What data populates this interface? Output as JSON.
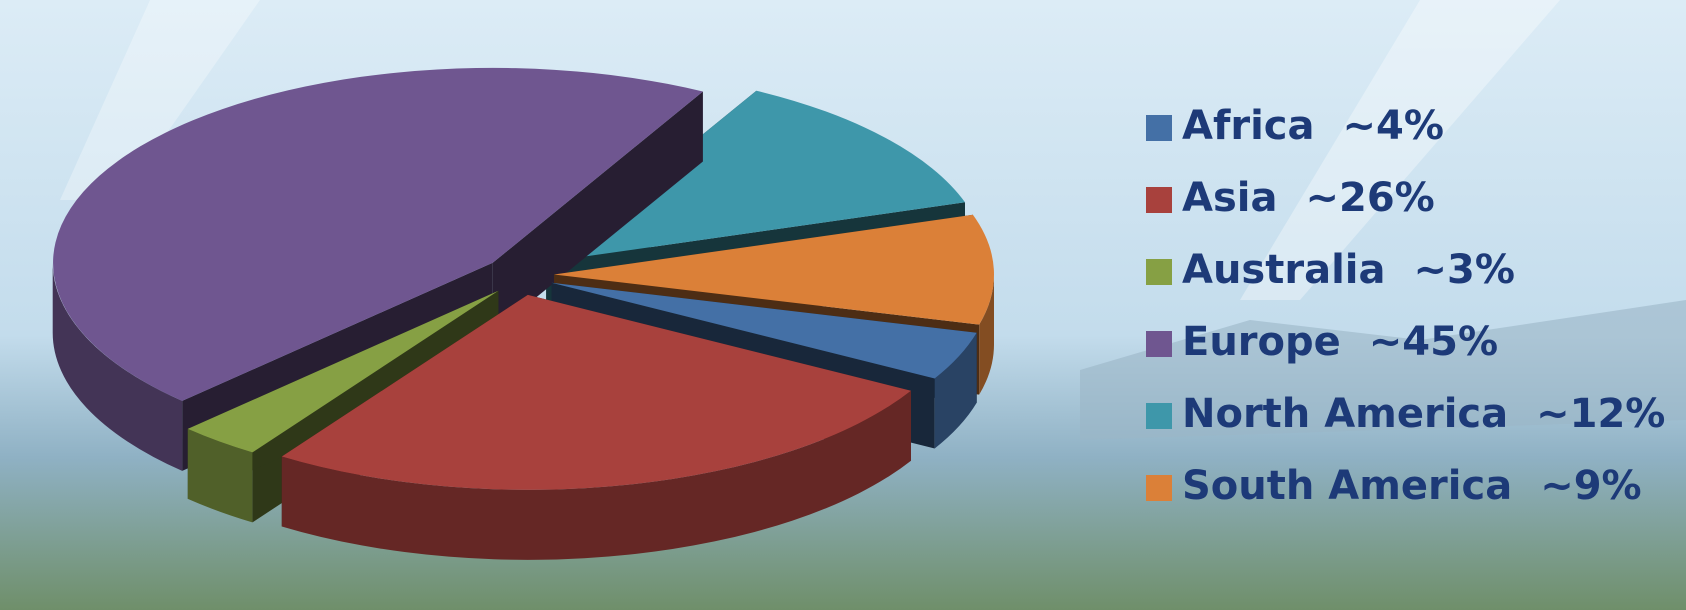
{
  "chart_data": {
    "type": "pie",
    "categories": [
      "Africa",
      "Asia",
      "Australia",
      "Europe",
      "North America",
      "South America"
    ],
    "values": [
      4,
      26,
      3,
      45,
      12,
      9
    ],
    "value_labels": [
      "~4%",
      "~26%",
      "~3%",
      "~45%",
      "~12%",
      "~9%"
    ],
    "colors": [
      "#4470a6",
      "#a8413d",
      "#86a044",
      "#6f5690",
      "#3e97aa",
      "#db8038"
    ]
  }
}
